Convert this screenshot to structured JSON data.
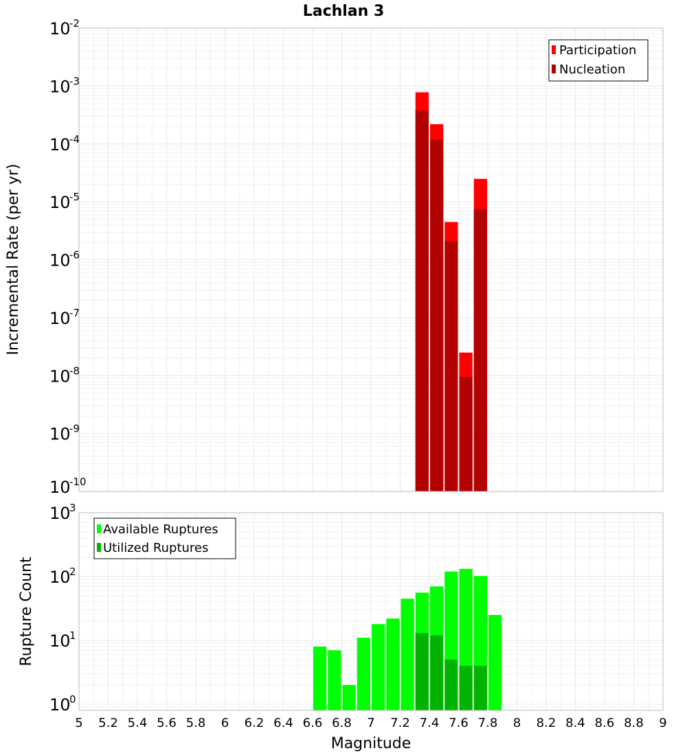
{
  "chart_data": [
    {
      "type": "bar",
      "title": "Lachlan 3",
      "xlabel": "",
      "ylabel": "Incremental Rate (per yr)",
      "yscale": "log",
      "ylim": [
        1e-10,
        0.01
      ],
      "xlim": [
        5,
        9
      ],
      "grid": true,
      "legend_position": "top-right",
      "bin_width": 0.1,
      "x": [
        7.35,
        7.45,
        7.55,
        7.65,
        7.75
      ],
      "series": [
        {
          "name": "Participation",
          "color": "#ff0000",
          "values": [
            0.00078,
            0.00022,
            4.5e-06,
            2.5e-08,
            2.5e-05
          ]
        },
        {
          "name": "Nucleation",
          "color": "#b30000",
          "values": [
            0.00038,
            0.00012,
            2.1e-06,
            9.5e-09,
            7.5e-06
          ]
        }
      ]
    },
    {
      "type": "bar",
      "title": "",
      "xlabel": "Magnitude",
      "ylabel": "Rupture Count",
      "yscale": "log",
      "ylim": [
        0.8,
        1000
      ],
      "xlim": [
        5,
        9
      ],
      "grid": true,
      "legend_position": "top-left",
      "bin_width": 0.1,
      "x": [
        6.65,
        6.75,
        6.85,
        6.95,
        7.05,
        7.15,
        7.25,
        7.35,
        7.45,
        7.55,
        7.65,
        7.75,
        7.85
      ],
      "series": [
        {
          "name": "Available Ruptures",
          "color": "#00ff00",
          "values": [
            8,
            7,
            2,
            11,
            18,
            22,
            45,
            56,
            70,
            120,
            132,
            102,
            25
          ]
        },
        {
          "name": "Utilized Ruptures",
          "color": "#00b300",
          "values": [
            0,
            0,
            0,
            0,
            0,
            0,
            0,
            13,
            12,
            5,
            4,
            4,
            0
          ]
        }
      ]
    }
  ],
  "x_ticks": [
    "5",
    "5.2",
    "5.4",
    "5.6",
    "5.8",
    "6",
    "6.2",
    "6.4",
    "6.6",
    "6.8",
    "7",
    "7.2",
    "7.4",
    "7.6",
    "7.8",
    "8",
    "8.2",
    "8.4",
    "8.6",
    "8.8",
    "9"
  ],
  "top_y_ticks": [
    {
      "base": "10",
      "exp": "-10",
      "value": 1e-10
    },
    {
      "base": "10",
      "exp": "-9",
      "value": 1e-09
    },
    {
      "base": "10",
      "exp": "-8",
      "value": 1e-08
    },
    {
      "base": "10",
      "exp": "-7",
      "value": 1e-07
    },
    {
      "base": "10",
      "exp": "-6",
      "value": 1e-06
    },
    {
      "base": "10",
      "exp": "-5",
      "value": 1e-05
    },
    {
      "base": "10",
      "exp": "-4",
      "value": 0.0001
    },
    {
      "base": "10",
      "exp": "-3",
      "value": 0.001
    },
    {
      "base": "10",
      "exp": "-2",
      "value": 0.01
    }
  ],
  "bottom_y_ticks": [
    {
      "base": "10",
      "exp": "0",
      "value": 1
    },
    {
      "base": "10",
      "exp": "1",
      "value": 10
    },
    {
      "base": "10",
      "exp": "2",
      "value": 100
    },
    {
      "base": "10",
      "exp": "3",
      "value": 1000
    }
  ]
}
